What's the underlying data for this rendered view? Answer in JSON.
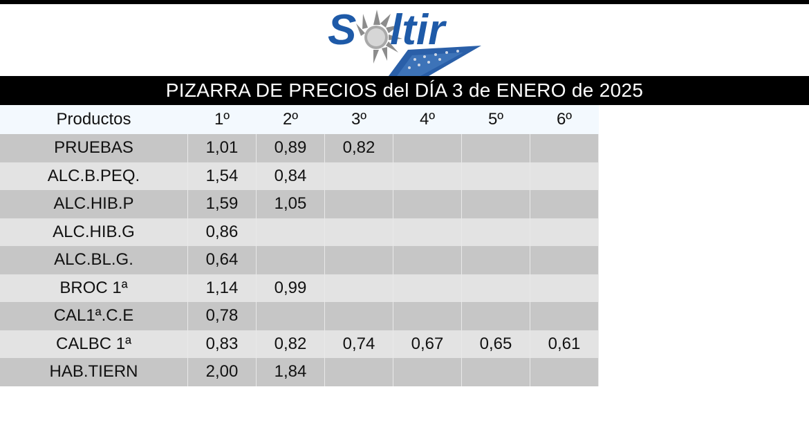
{
  "logo": {
    "text": "Soltir",
    "colors": {
      "primary": "#1e5aa8",
      "sun": "#8a8a8a"
    }
  },
  "title": "PIZARRA DE PRECIOS del DÍA 3 de ENERO de 2025",
  "table": {
    "headers": [
      "Productos",
      "1º",
      "2º",
      "3º",
      "4º",
      "5º",
      "6º"
    ],
    "rows": [
      {
        "product": "PRUEBAS",
        "prices": [
          "1,01",
          "0,89",
          "0,82",
          "",
          "",
          ""
        ]
      },
      {
        "product": "ALC.B.PEQ.",
        "prices": [
          "1,54",
          "0,84",
          "",
          "",
          "",
          ""
        ]
      },
      {
        "product": "ALC.HIB.P",
        "prices": [
          "1,59",
          "1,05",
          "",
          "",
          "",
          ""
        ]
      },
      {
        "product": "ALC.HIB.G",
        "prices": [
          "0,86",
          "",
          "",
          "",
          "",
          ""
        ]
      },
      {
        "product": "ALC.BL.G.",
        "prices": [
          "0,64",
          "",
          "",
          "",
          "",
          ""
        ]
      },
      {
        "product": "BROC 1ª",
        "prices": [
          "1,14",
          "0,99",
          "",
          "",
          "",
          ""
        ]
      },
      {
        "product": "CAL1ª.C.E",
        "prices": [
          "0,78",
          "",
          "",
          "",
          "",
          ""
        ]
      },
      {
        "product": "CALBC 1ª",
        "prices": [
          "0,83",
          "0,82",
          "0,74",
          "0,67",
          "0,65",
          "0,61"
        ]
      },
      {
        "product": "HAB.TIERN",
        "prices": [
          "2,00",
          "1,84",
          "",
          "",
          "",
          ""
        ]
      }
    ]
  }
}
